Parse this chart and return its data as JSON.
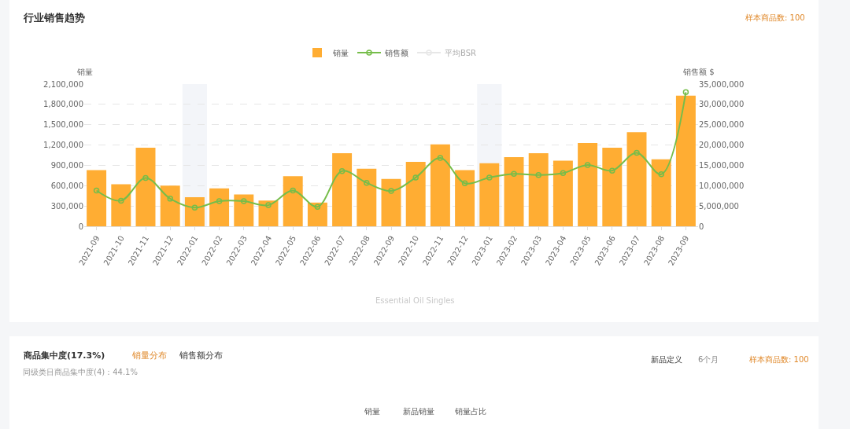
{
  "chart_data": {
    "type": "bar",
    "title": "行业销售趋势",
    "ylabel": "销量",
    "y2label": "销售额 $",
    "categories": [
      "2021-09",
      "2021-10",
      "2021-11",
      "2021-12",
      "2022-01",
      "2022-02",
      "2022-03",
      "2022-04",
      "2022-05",
      "2022-06",
      "2022-07",
      "2022-08",
      "2022-09",
      "2022-10",
      "2022-11",
      "2022-12",
      "2023-01",
      "2023-02",
      "2023-03",
      "2023-04",
      "2023-05",
      "2023-06",
      "2023-07",
      "2023-08",
      "2023-09"
    ],
    "series": [
      {
        "name": "销量",
        "color": "#ffad33",
        "values": [
          830000,
          620000,
          1160000,
          600000,
          430000,
          560000,
          470000,
          380000,
          740000,
          350000,
          1080000,
          850000,
          700000,
          950000,
          1210000,
          830000,
          930000,
          1020000,
          1080000,
          970000,
          1230000,
          1160000,
          1390000,
          990000,
          1930000
        ]
      },
      {
        "name": "销售额",
        "type": "line",
        "axis": "y2",
        "color": "#76bd4a",
        "marker": "circle",
        "values": [
          8800000,
          6300000,
          11900000,
          6800000,
          4600000,
          6200000,
          6200000,
          5200000,
          8800000,
          4800000,
          13600000,
          10700000,
          8700000,
          12000000,
          16800000,
          10600000,
          12000000,
          12900000,
          12600000,
          13100000,
          15100000,
          13700000,
          18100000,
          12800000,
          33000000
        ]
      },
      {
        "name": "平均BSR",
        "type": "line",
        "color": "#d0d0d0",
        "marker": "circle",
        "values": [
          null,
          null,
          null,
          null,
          null,
          null,
          null,
          null,
          null,
          null,
          null,
          null,
          null,
          null,
          null,
          null,
          null,
          null,
          null,
          null,
          null,
          null,
          null,
          null,
          null
        ]
      }
    ],
    "ylim": [
      0,
      2100000
    ],
    "yticks": [
      {
        "value": 0,
        "label": "0"
      },
      {
        "value": 300000,
        "label": "300,000"
      },
      {
        "value": 600000,
        "label": "600,000"
      },
      {
        "value": 900000,
        "label": "900,000"
      },
      {
        "value": 1200000,
        "label": "1,200,000"
      },
      {
        "value": 1500000,
        "label": "1,500,000"
      },
      {
        "value": 1800000,
        "label": "1,800,000"
      },
      {
        "value": 2100000,
        "label": "2,100,000"
      }
    ],
    "y2lim": [
      0,
      35000000
    ],
    "y2ticks": [
      {
        "value": 0,
        "label": "0"
      },
      {
        "value": 5000000,
        "label": "5,000,000"
      },
      {
        "value": 10000000,
        "label": "10,000,000"
      },
      {
        "value": 15000000,
        "label": "15,000,000"
      },
      {
        "value": 20000000,
        "label": "20,000,000"
      },
      {
        "value": 25000000,
        "label": "25,000,000"
      },
      {
        "value": 30000000,
        "label": "30,000,000"
      },
      {
        "value": 35000000,
        "label": "35,000,000"
      }
    ],
    "grid": "y",
    "legend": "top",
    "bands": [
      {
        "axis": "x",
        "from": "2022-01",
        "to": "2022-01",
        "color": "#f3f5f9"
      },
      {
        "axis": "x",
        "from": "2023-01",
        "to": "2023-01",
        "color": "#f3f5f9"
      }
    ],
    "annotations": [
      "样本商品数: 100",
      "Essential Oil Singles",
      "商品集中度(17.3%)",
      "销量分布",
      "销售额分布",
      "同级类目商品集中度(4)：44.1%",
      "新品定义",
      "6个月",
      "样本商品数: 100",
      "销量",
      "新品销量",
      "销量占比"
    ]
  }
}
